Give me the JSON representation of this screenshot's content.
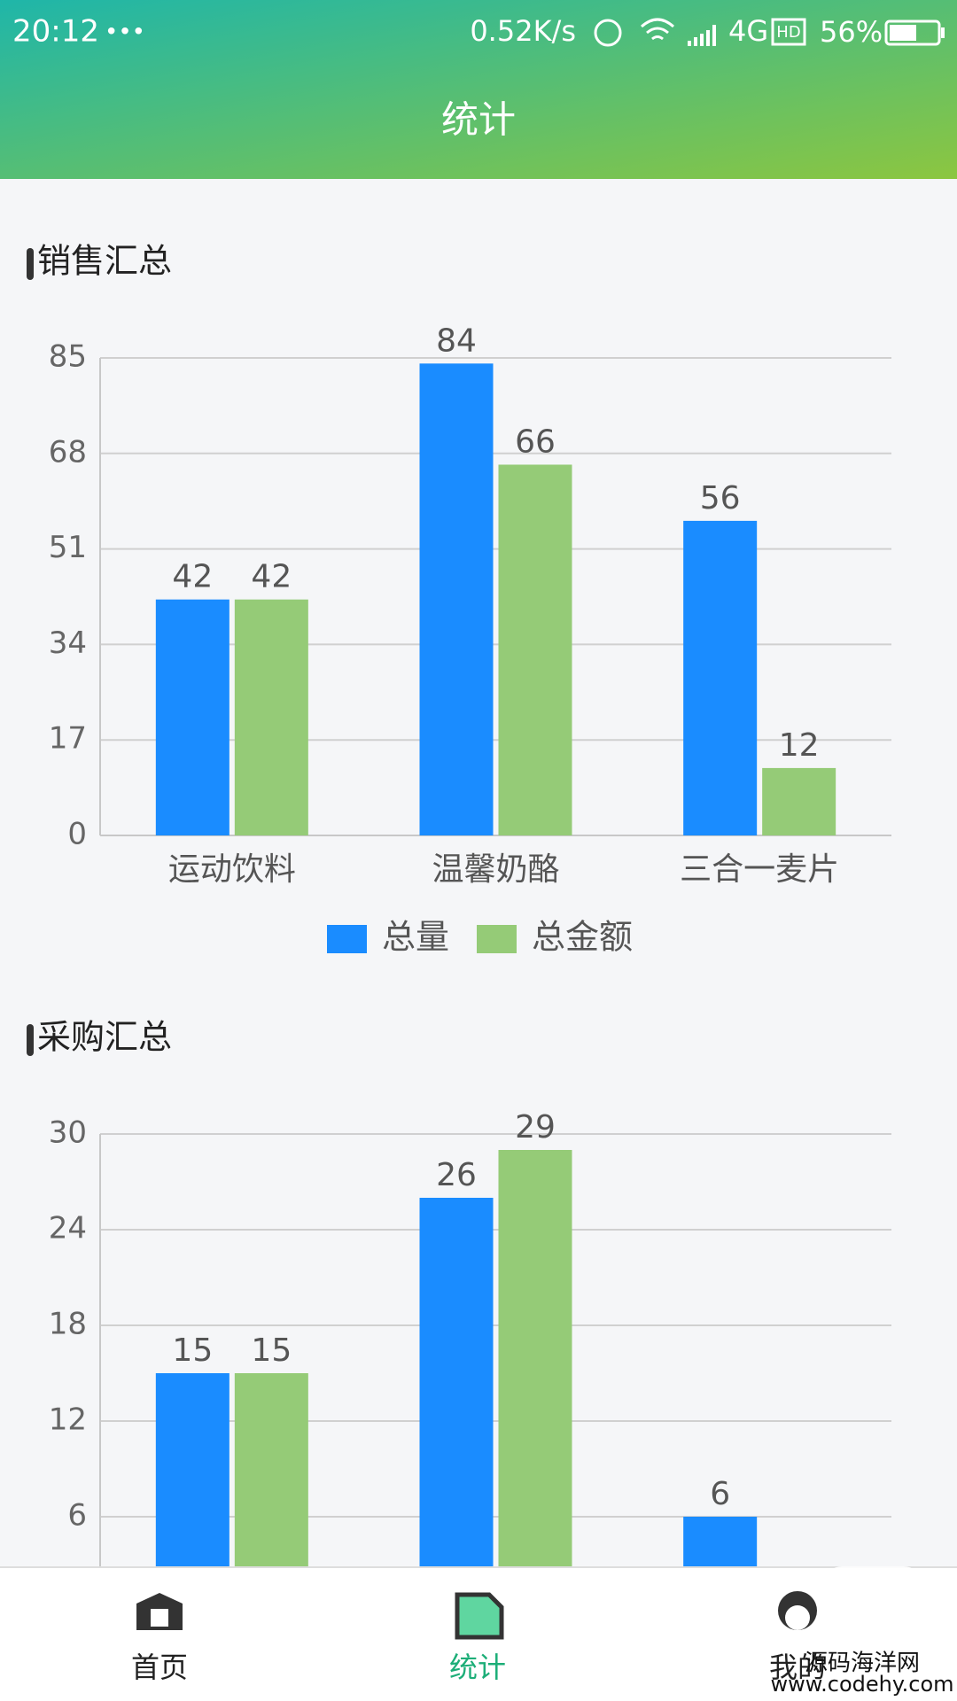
{
  "status_bar": {
    "time": "20:12",
    "network": "0.52K/s",
    "signal": "4G",
    "hd": "HD",
    "battery": "56%"
  },
  "header": {
    "title": "统计"
  },
  "chart_data": [
    {
      "type": "bar",
      "title": "销售汇总",
      "categories": [
        "运动饮料",
        "温馨奶酪",
        "三合一麦片"
      ],
      "series": [
        {
          "name": "总量",
          "color": "#1a8cff",
          "values": [
            42,
            84,
            56
          ]
        },
        {
          "name": "总金额",
          "color": "#95cb77",
          "values": [
            42,
            66,
            12
          ]
        }
      ],
      "ylim": [
        0,
        85
      ],
      "yticks": [
        0,
        17,
        34,
        51,
        68,
        85
      ],
      "grid": true,
      "legend": "bottom"
    },
    {
      "type": "bar",
      "title": "采购汇总",
      "categories": [
        null,
        null,
        null
      ],
      "series": [
        {
          "color": "#1a8cff",
          "values": [
            15,
            26,
            6
          ]
        },
        {
          "color": "#95cb77",
          "values": [
            15,
            29,
            null
          ]
        }
      ],
      "ylim": [
        0,
        30
      ],
      "yticks": [
        6,
        12,
        18,
        24,
        30
      ],
      "grid": true
    }
  ],
  "tab_bar": {
    "items": [
      "首页",
      "统计",
      "我的"
    ],
    "active": 1
  },
  "watermark": {
    "name": "源码海洋网",
    "url": "www.codehy.com"
  }
}
